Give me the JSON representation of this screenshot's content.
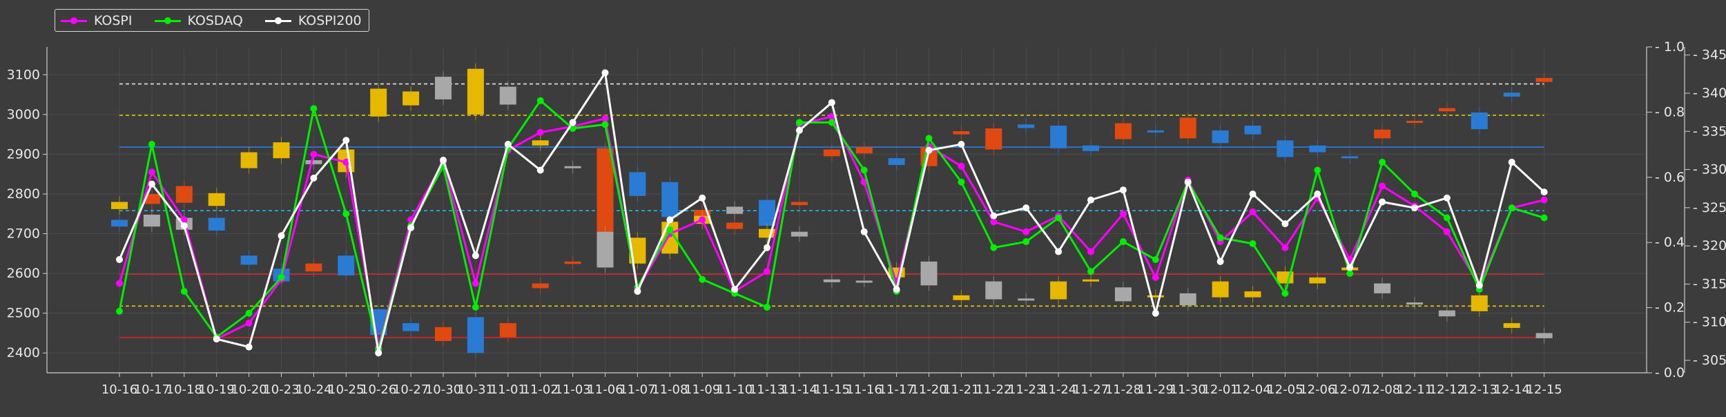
{
  "chart_data": {
    "type": "line",
    "title": "",
    "categories": [
      "10-16",
      "10-17",
      "10-18",
      "10-19",
      "10-20",
      "10-23",
      "10-24",
      "10-25",
      "10-26",
      "10-27",
      "10-30",
      "10-31",
      "11-01",
      "11-02",
      "11-03",
      "11-06",
      "11-07",
      "11-08",
      "11-09",
      "11-10",
      "11-13",
      "11-14",
      "11-15",
      "11-16",
      "11-17",
      "11-20",
      "11-21",
      "11-22",
      "11-23",
      "11-24",
      "11-27",
      "11-28",
      "11-29",
      "11-30",
      "12-01",
      "12-04",
      "12-05",
      "12-06",
      "12-07",
      "12-08",
      "12-11",
      "12-12",
      "12-13",
      "12-14",
      "12-15"
    ],
    "left_axis": {
      "ylim": [
        2350,
        3170
      ],
      "ticks": [
        2400,
        2500,
        2600,
        2700,
        2800,
        2900,
        3000,
        3100
      ]
    },
    "middle_axis": {
      "ylim": [
        0.0,
        1.0
      ],
      "ticks": [
        "0.0",
        "0.2",
        "0.4",
        "0.6",
        "0.8",
        "1.0"
      ]
    },
    "right_axis": {
      "ylim": [
        303.37,
        346.06
      ],
      "ticks": [
        305,
        310,
        315,
        320,
        325,
        330,
        335,
        340,
        345
      ]
    },
    "series": [
      {
        "name": "KOSPI",
        "color": "#ff00ff",
        "values": [
          2575,
          2855,
          2735,
          2435,
          2475,
          2585,
          2900,
          2880,
          2415,
          2735,
          2880,
          2575,
          2910,
          2955,
          2970,
          2990,
          2560,
          2700,
          2735,
          2555,
          2605,
          2975,
          2995,
          2830,
          2575,
          2920,
          2870,
          2730,
          2705,
          2745,
          2655,
          2750,
          2590,
          2835,
          2680,
          2755,
          2665,
          2790,
          2635,
          2820,
          2770,
          2705,
          2570,
          2765,
          2785
        ]
      },
      {
        "name": "KOSDAQ",
        "color": "#00ee00",
        "values": [
          2505,
          2925,
          2555,
          2440,
          2500,
          2590,
          3015,
          2750,
          2410,
          2720,
          2870,
          2515,
          2915,
          3035,
          2965,
          2975,
          2565,
          2710,
          2585,
          2550,
          2515,
          2980,
          2980,
          2860,
          2555,
          2940,
          2830,
          2665,
          2680,
          2740,
          2605,
          2680,
          2635,
          2830,
          2690,
          2675,
          2550,
          2860,
          2600,
          2880,
          2800,
          2740,
          2560,
          2765,
          2740
        ]
      },
      {
        "name": "KOSPI200",
        "color": "#ffffff",
        "values": [
          2635,
          2825,
          2720,
          2435,
          2415,
          2695,
          2840,
          2935,
          2400,
          2715,
          2885,
          2645,
          2925,
          2860,
          2980,
          3105,
          2555,
          2735,
          2790,
          2560,
          2665,
          2960,
          3030,
          2705,
          2560,
          2910,
          2925,
          2745,
          2765,
          2655,
          2785,
          2810,
          2500,
          2830,
          2630,
          2800,
          2725,
          2800,
          2615,
          2780,
          2765,
          2790,
          2570,
          2880,
          2805
        ]
      }
    ],
    "candles": [
      {
        "o": 2762,
        "c": 2780,
        "color": "#e6b800"
      },
      {
        "o": 2800,
        "c": 2775,
        "color": "#e04a10"
      },
      {
        "o": 2820,
        "c": 2778,
        "color": "#e04a10"
      },
      {
        "o": 2802,
        "c": 2770,
        "color": "#e6b800"
      },
      {
        "o": 2905,
        "c": 2865,
        "color": "#e6b800"
      },
      {
        "o": 2930,
        "c": 2890,
        "color": "#e6b800"
      },
      {
        "o": 2625,
        "c": 2605,
        "color": "#e04a10"
      },
      {
        "o": 2912,
        "c": 2855,
        "color": "#e6b800"
      },
      {
        "o": 3065,
        "c": 2995,
        "color": "#e6b800"
      },
      {
        "o": 3058,
        "c": 3023,
        "color": "#e6b800"
      },
      {
        "o": 3095,
        "c": 3038,
        "color": "#a8a8a8"
      },
      {
        "o": 3115,
        "c": 3000,
        "color": "#e6b800"
      },
      {
        "o": 3070,
        "c": 3025,
        "color": "#a8a8a8"
      },
      {
        "o": 2935,
        "c": 2922,
        "color": "#e6b800"
      },
      {
        "o": 2870,
        "c": 2865,
        "color": "#a8a8a8"
      },
      {
        "o": 2915,
        "c": 2705,
        "color": "#e04a10"
      },
      {
        "o": 2855,
        "c": 2795,
        "color": "#2a7bd4"
      },
      {
        "o": 2830,
        "c": 2742,
        "color": "#2a7bd4"
      },
      {
        "o": 2760,
        "c": 2738,
        "color": "#e04a10"
      },
      {
        "o": 2768,
        "c": 2750,
        "color": "#a8a8a8"
      },
      {
        "o": 2785,
        "c": 2720,
        "color": "#2a7bd4"
      },
      {
        "o": 2780,
        "c": 2772,
        "color": "#e04a10"
      },
      {
        "o": 2912,
        "c": 2895,
        "color": "#e04a10"
      },
      {
        "o": 2918,
        "c": 2902,
        "color": "#e04a10"
      },
      {
        "o": 2890,
        "c": 2873,
        "color": "#2a7bd4"
      },
      {
        "o": 2918,
        "c": 2870,
        "color": "#e04a10"
      },
      {
        "o": 2958,
        "c": 2950,
        "color": "#e04a10"
      },
      {
        "o": 2965,
        "c": 2912,
        "color": "#e04a10"
      },
      {
        "o": 2975,
        "c": 2966,
        "color": "#2a7bd4"
      },
      {
        "o": 2972,
        "c": 2915,
        "color": "#2a7bd4"
      },
      {
        "o": 2922,
        "c": 2908,
        "color": "#2a7bd4"
      },
      {
        "o": 2978,
        "c": 2938,
        "color": "#e04a10"
      },
      {
        "o": 2960,
        "c": 2957,
        "color": "#2a7bd4"
      },
      {
        "o": 2992,
        "c": 2940,
        "color": "#e04a10"
      },
      {
        "o": 2960,
        "c": 2928,
        "color": "#2a7bd4"
      },
      {
        "o": 2972,
        "c": 2950,
        "color": "#2a7bd4"
      },
      {
        "o": 2935,
        "c": 2893,
        "color": "#2a7bd4"
      },
      {
        "o": 2922,
        "c": 2905,
        "color": "#2a7bd4"
      },
      {
        "o": 2895,
        "c": 2890,
        "color": "#2a7bd4"
      },
      {
        "o": 2962,
        "c": 2940,
        "color": "#e04a10"
      },
      {
        "o": 2984,
        "c": 2980,
        "color": "#e04a10"
      },
      {
        "o": 3016,
        "c": 3008,
        "color": "#e04a10"
      },
      {
        "o": 3005,
        "c": 2963,
        "color": "#2a7bd4"
      },
      {
        "o": 3055,
        "c": 3045,
        "color": "#2a7bd4"
      },
      {
        "o": 3092,
        "c": 3082,
        "color": "#e04a10"
      },
      {
        "o": 2735,
        "c": 2718,
        "color": "#2a7bd4"
      },
      {
        "o": 2748,
        "c": 2718,
        "color": "#a8a8a8"
      },
      {
        "o": 2740,
        "c": 2710,
        "color": "#a8a8a8"
      },
      {
        "o": 2740,
        "c": 2708,
        "color": "#2a7bd4"
      },
      {
        "o": 2645,
        "c": 2622,
        "color": "#2a7bd4"
      },
      {
        "o": 2612,
        "c": 2580,
        "color": "#2a7bd4"
      },
      {
        "o": 2885,
        "c": 2875,
        "color": "#a8a8a8"
      },
      {
        "o": 2645,
        "c": 2595,
        "color": "#2a7bd4"
      },
      {
        "o": 2510,
        "c": 2445,
        "color": "#2a7bd4"
      },
      {
        "o": 2475,
        "c": 2455,
        "color": "#2a7bd4"
      },
      {
        "o": 2465,
        "c": 2430,
        "color": "#e04a10"
      },
      {
        "o": 2490,
        "c": 2400,
        "color": "#2a7bd4"
      },
      {
        "o": 2475,
        "c": 2440,
        "color": "#e04a10"
      },
      {
        "o": 2575,
        "c": 2563,
        "color": "#e04a10"
      },
      {
        "o": 2630,
        "c": 2624,
        "color": "#e04a10"
      },
      {
        "o": 2705,
        "c": 2615,
        "color": "#a8a8a8"
      },
      {
        "o": 2690,
        "c": 2625,
        "color": "#e6b800"
      },
      {
        "o": 2730,
        "c": 2650,
        "color": "#e6b800"
      },
      {
        "o": 2745,
        "c": 2725,
        "color": "#e6b800"
      },
      {
        "o": 2728,
        "c": 2712,
        "color": "#e04a10"
      },
      {
        "o": 2712,
        "c": 2690,
        "color": "#e6b800"
      },
      {
        "o": 2705,
        "c": 2693,
        "color": "#a8a8a8"
      },
      {
        "o": 2585,
        "c": 2578,
        "color": "#a8a8a8"
      },
      {
        "o": 2582,
        "c": 2579,
        "color": "#a8a8a8"
      },
      {
        "o": 2615,
        "c": 2590,
        "color": "#e6b800"
      },
      {
        "o": 2630,
        "c": 2570,
        "color": "#a8a8a8"
      },
      {
        "o": 2545,
        "c": 2533,
        "color": "#e6b800"
      },
      {
        "o": 2580,
        "c": 2535,
        "color": "#a8a8a8"
      },
      {
        "o": 2537,
        "c": 2535,
        "color": "#a8a8a8"
      },
      {
        "o": 2580,
        "c": 2535,
        "color": "#e6b800"
      },
      {
        "o": 2585,
        "c": 2580,
        "color": "#e6b800"
      },
      {
        "o": 2565,
        "c": 2530,
        "color": "#a8a8a8"
      },
      {
        "o": 2545,
        "c": 2540,
        "color": "#e6b800"
      },
      {
        "o": 2550,
        "c": 2520,
        "color": "#a8a8a8"
      },
      {
        "o": 2580,
        "c": 2540,
        "color": "#e6b800"
      },
      {
        "o": 2555,
        "c": 2540,
        "color": "#e6b800"
      },
      {
        "o": 2605,
        "c": 2575,
        "color": "#e6b800"
      },
      {
        "o": 2590,
        "c": 2575,
        "color": "#e6b800"
      },
      {
        "o": 2615,
        "c": 2608,
        "color": "#e6b800"
      },
      {
        "o": 2575,
        "c": 2550,
        "color": "#a8a8a8"
      },
      {
        "o": 2527,
        "c": 2524,
        "color": "#a8a8a8"
      },
      {
        "o": 2507,
        "c": 2492,
        "color": "#a8a8a8"
      },
      {
        "o": 2545,
        "c": 2505,
        "color": "#e6b800"
      },
      {
        "o": 2475,
        "c": 2463,
        "color": "#e6b800"
      },
      {
        "o": 2450,
        "c": 2437,
        "color": "#a8a8a8"
      }
    ],
    "reference_lines": [
      {
        "value": 3077,
        "color": "#e6e6e6",
        "style": "dashed"
      },
      {
        "value": 2998,
        "color": "#e6d000",
        "style": "dashed"
      },
      {
        "value": 2918,
        "color": "#2d7de0",
        "style": "solid"
      },
      {
        "value": 2758,
        "color": "#1fb8e8",
        "style": "dashed"
      },
      {
        "value": 2598,
        "color": "#d8242a",
        "style": "solid"
      },
      {
        "value": 2518,
        "color": "#e6d000",
        "style": "dashed"
      },
      {
        "value": 2439,
        "color": "#d8242a",
        "style": "solid"
      }
    ],
    "grid": true,
    "legend_position": "top-left"
  }
}
